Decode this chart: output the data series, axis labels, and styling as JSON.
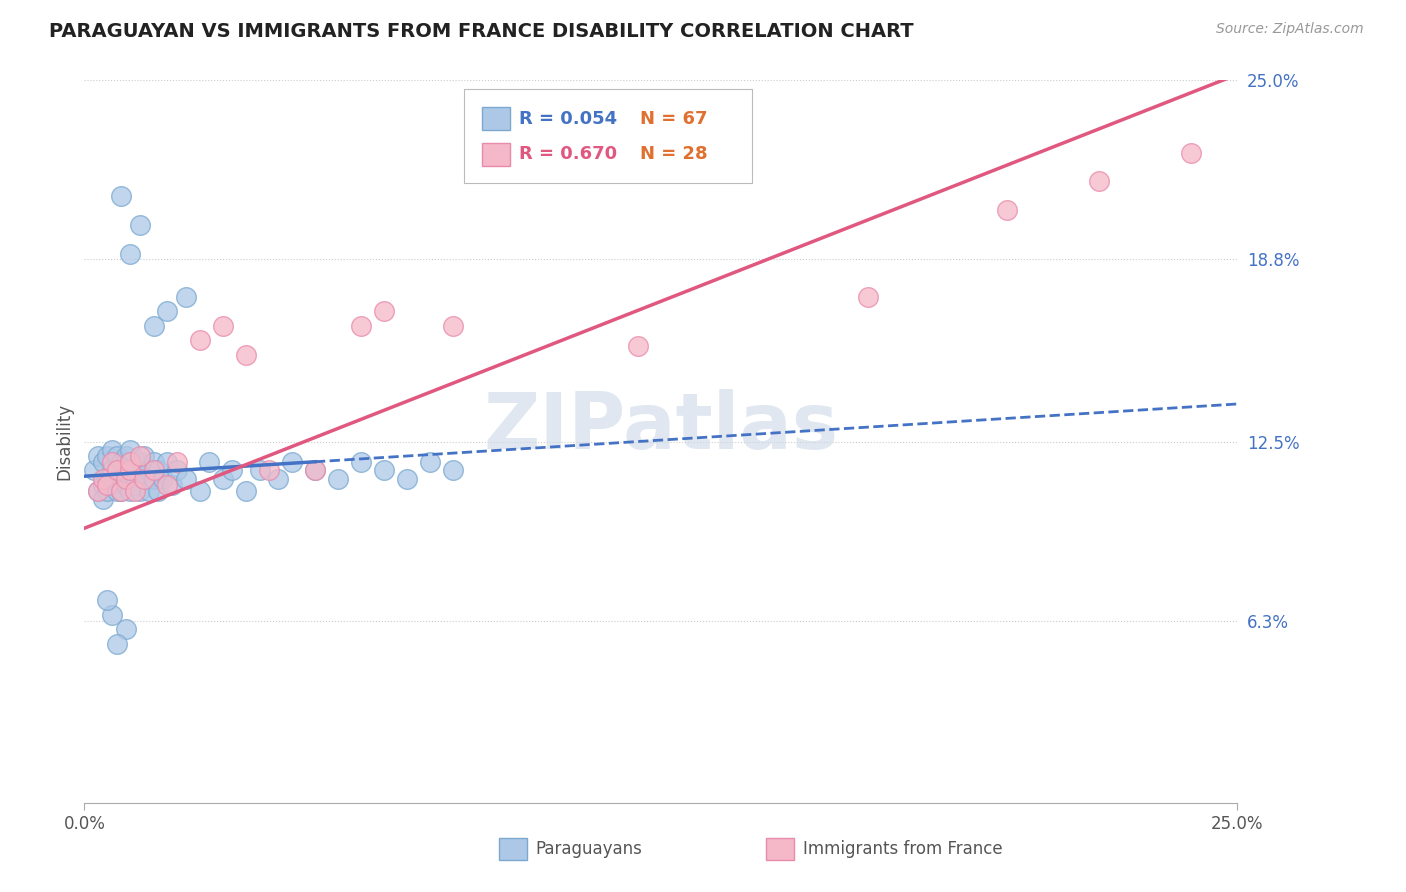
{
  "title": "PARAGUAYAN VS IMMIGRANTS FROM FRANCE DISABILITY CORRELATION CHART",
  "source_text": "Source: ZipAtlas.com",
  "ylabel": "Disability",
  "xlim": [
    0.0,
    0.25
  ],
  "ylim": [
    0.0,
    0.25
  ],
  "ytick_labels": [
    "6.3%",
    "12.5%",
    "18.8%",
    "25.0%"
  ],
  "ytick_values": [
    0.063,
    0.125,
    0.188,
    0.25
  ],
  "xtick_labels": [
    "0.0%",
    "25.0%"
  ],
  "legend_r1": "R = 0.054",
  "legend_n1": "N = 67",
  "legend_r2": "R = 0.670",
  "legend_n2": "N = 28",
  "paraguayan_color": "#adc8e6",
  "france_color": "#f5b8c8",
  "paraguayan_edge": "#7aa8d0",
  "france_edge": "#e88aaa",
  "trend_blue": "#4472c4",
  "trend_pink": "#e05880",
  "label_blue": "#4472c4",
  "label_orange": "#e07030",
  "watermark_color": "#ccd8e8",
  "paraguayan_scatter_x": [
    0.002,
    0.003,
    0.003,
    0.004,
    0.004,
    0.004,
    0.005,
    0.005,
    0.005,
    0.006,
    0.006,
    0.006,
    0.007,
    0.007,
    0.007,
    0.008,
    0.008,
    0.008,
    0.009,
    0.009,
    0.009,
    0.01,
    0.01,
    0.01,
    0.01,
    0.011,
    0.011,
    0.012,
    0.012,
    0.013,
    0.013,
    0.014,
    0.014,
    0.015,
    0.015,
    0.016,
    0.016,
    0.017,
    0.018,
    0.019,
    0.02,
    0.022,
    0.025,
    0.027,
    0.03,
    0.032,
    0.035,
    0.038,
    0.042,
    0.045,
    0.05,
    0.055,
    0.06,
    0.065,
    0.07,
    0.075,
    0.08,
    0.015,
    0.018,
    0.022,
    0.012,
    0.008,
    0.01,
    0.009,
    0.007,
    0.006,
    0.005
  ],
  "paraguayan_scatter_y": [
    0.115,
    0.108,
    0.12,
    0.11,
    0.105,
    0.118,
    0.112,
    0.12,
    0.108,
    0.115,
    0.11,
    0.122,
    0.108,
    0.115,
    0.12,
    0.112,
    0.108,
    0.118,
    0.11,
    0.115,
    0.12,
    0.112,
    0.108,
    0.118,
    0.122,
    0.11,
    0.115,
    0.108,
    0.118,
    0.112,
    0.12,
    0.108,
    0.115,
    0.112,
    0.118,
    0.108,
    0.115,
    0.112,
    0.118,
    0.11,
    0.115,
    0.112,
    0.108,
    0.118,
    0.112,
    0.115,
    0.108,
    0.115,
    0.112,
    0.118,
    0.115,
    0.112,
    0.118,
    0.115,
    0.112,
    0.118,
    0.115,
    0.165,
    0.17,
    0.175,
    0.2,
    0.21,
    0.19,
    0.06,
    0.055,
    0.065,
    0.07
  ],
  "france_scatter_x": [
    0.003,
    0.004,
    0.005,
    0.006,
    0.007,
    0.008,
    0.009,
    0.01,
    0.01,
    0.011,
    0.012,
    0.013,
    0.015,
    0.018,
    0.02,
    0.025,
    0.03,
    0.035,
    0.04,
    0.05,
    0.06,
    0.065,
    0.08,
    0.12,
    0.17,
    0.2,
    0.22,
    0.24
  ],
  "france_scatter_y": [
    0.108,
    0.112,
    0.11,
    0.118,
    0.115,
    0.108,
    0.112,
    0.115,
    0.118,
    0.108,
    0.12,
    0.112,
    0.115,
    0.11,
    0.118,
    0.16,
    0.165,
    0.155,
    0.115,
    0.115,
    0.165,
    0.17,
    0.165,
    0.158,
    0.175,
    0.205,
    0.215,
    0.225
  ],
  "blue_trend_y0": 0.113,
  "blue_trend_y1": 0.138,
  "pink_trend_y0": 0.095,
  "pink_trend_y1": 0.252
}
